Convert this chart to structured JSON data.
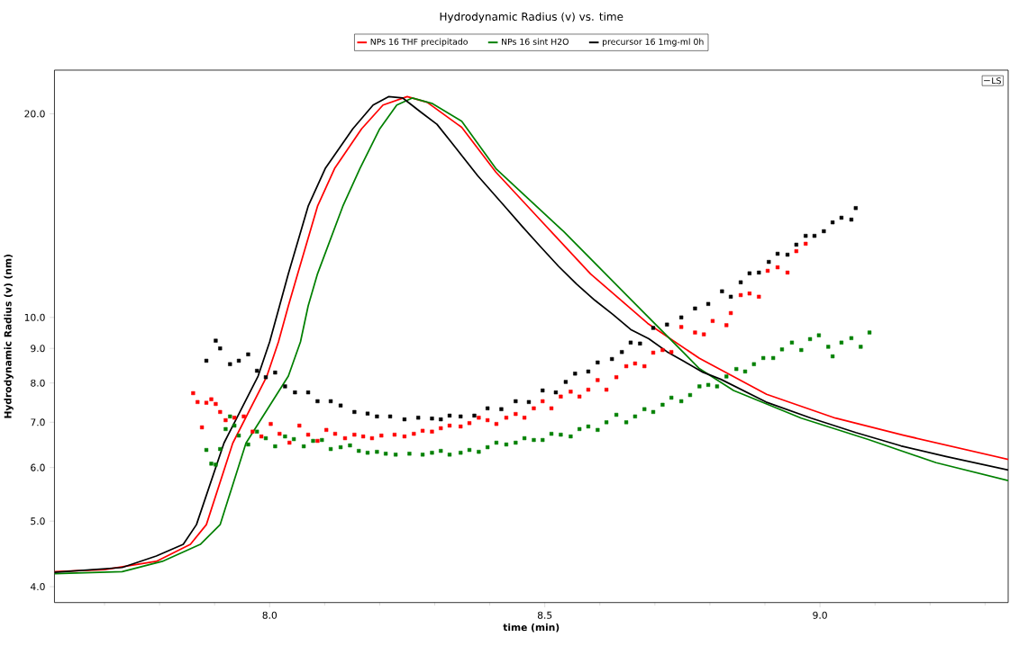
{
  "chart_data": {
    "type": "line",
    "title": "Hydrodynamic Radius (v) vs. time",
    "xlabel": "time (min)",
    "ylabel": "Hydrodynamic Radius (v) (nm)",
    "annotations": [
      "LS"
    ],
    "xlim": [
      7.609,
      9.342
    ],
    "ylim": [
      3.79,
      23.2
    ],
    "log": "y",
    "legend": "top",
    "xticks": [
      {
        "value": 7.7,
        "label": null
      },
      {
        "value": 7.8,
        "label": null
      },
      {
        "value": 7.9,
        "label": null
      },
      {
        "value": 8,
        "label": "8.0"
      },
      {
        "value": 8.1,
        "label": null
      },
      {
        "value": 8.2,
        "label": null
      },
      {
        "value": 8.3,
        "label": null
      },
      {
        "value": 8.4,
        "label": null
      },
      {
        "value": 8.5,
        "label": "8.5"
      },
      {
        "value": 8.6,
        "label": null
      },
      {
        "value": 8.7,
        "label": null
      },
      {
        "value": 8.8,
        "label": null
      },
      {
        "value": 8.9,
        "label": null
      },
      {
        "value": 9,
        "label": "9.0"
      },
      {
        "value": 9.1,
        "label": null
      },
      {
        "value": 9.2,
        "label": null
      },
      {
        "value": 9.3,
        "label": null
      }
    ],
    "yticks": [
      {
        "value": 4,
        "label": "4.0"
      },
      {
        "value": 5,
        "label": "5.0"
      },
      {
        "value": 6,
        "label": "6.0"
      },
      {
        "value": 7,
        "label": "7.0"
      },
      {
        "value": 8,
        "label": "8.0"
      },
      {
        "value": 9,
        "label": "9.0"
      },
      {
        "value": 10,
        "label": "10.0"
      },
      {
        "value": 20,
        "label": "20.0"
      }
    ],
    "series": [
      {
        "name": "NPs 16 THF precipitado",
        "color": "#ff0000",
        "x": [
          7.609,
          7.7,
          7.794,
          7.856,
          7.885,
          7.933,
          7.995,
          8.016,
          8.034,
          8.051,
          8.087,
          8.118,
          8.167,
          8.206,
          8.25,
          8.286,
          8.349,
          8.411,
          8.493,
          8.583,
          8.687,
          8.781,
          8.903,
          9.028,
          9.151,
          9.342
        ],
        "values": [
          4.21,
          4.24,
          4.36,
          4.62,
          4.94,
          6.52,
          8.19,
          9.2,
          10.4,
          11.6,
          14.6,
          16.6,
          19.0,
          20.6,
          21.2,
          20.8,
          19.1,
          16.4,
          13.9,
          11.6,
          9.8,
          8.7,
          7.7,
          7.1,
          6.7,
          6.17
        ]
      },
      {
        "name": "NPs 16 sint H2O",
        "color": "#008000",
        "x": [
          7.609,
          7.732,
          7.805,
          7.874,
          7.91,
          7.957,
          8.034,
          8.056,
          8.07,
          8.087,
          8.133,
          8.164,
          8.2,
          8.231,
          8.259,
          8.296,
          8.349,
          8.411,
          8.534,
          8.658,
          8.781,
          8.843,
          8.966,
          9.088,
          9.211,
          9.342
        ],
        "values": [
          4.18,
          4.21,
          4.36,
          4.62,
          4.94,
          6.52,
          8.19,
          9.2,
          10.4,
          11.6,
          14.6,
          16.6,
          19.0,
          20.6,
          21.1,
          20.7,
          19.5,
          16.6,
          13.4,
          10.6,
          8.4,
          7.8,
          7.1,
          6.6,
          6.1,
          5.74
        ]
      },
      {
        "name": "precursor 16 1mg-ml 0h",
        "color": "#000000",
        "x": [
          7.609,
          7.732,
          7.794,
          7.843,
          7.867,
          7.917,
          7.979,
          8.0,
          8.018,
          8.034,
          8.07,
          8.101,
          8.151,
          8.188,
          8.216,
          8.242,
          8.275,
          8.304,
          8.329,
          8.378,
          8.427,
          8.46,
          8.493,
          8.525,
          8.558,
          8.591,
          8.624,
          8.656,
          8.689,
          8.722,
          8.754,
          8.787,
          8.82,
          8.902,
          8.984,
          9.065,
          9.147,
          9.229,
          9.342
        ],
        "values": [
          4.2,
          4.27,
          4.44,
          4.62,
          4.94,
          6.52,
          8.19,
          9.2,
          10.4,
          11.6,
          14.6,
          16.6,
          19.0,
          20.6,
          21.2,
          21.1,
          20.1,
          19.3,
          18.2,
          16.2,
          14.6,
          13.6,
          12.7,
          11.9,
          11.2,
          10.6,
          10.1,
          9.6,
          9.3,
          8.9,
          8.6,
          8.3,
          8.1,
          7.5,
          7.1,
          6.76,
          6.46,
          6.23,
          5.95
        ]
      },
      {
        "type": "scatter",
        "marker": "square",
        "color": "#ff0000",
        "x": [
          7.861,
          7.869,
          7.877,
          7.885,
          7.894,
          7.902,
          7.91,
          7.92,
          7.936,
          7.953,
          7.969,
          7.985,
          8.002,
          8.018,
          8.036,
          8.054,
          8.07,
          8.087,
          8.103,
          8.119,
          8.137,
          8.154,
          8.17,
          8.186,
          8.203,
          8.227,
          8.245,
          8.262,
          8.278,
          8.295,
          8.311,
          8.327,
          8.347,
          8.363,
          8.38,
          8.396,
          8.412,
          8.43,
          8.447,
          8.463,
          8.48,
          8.496,
          8.512,
          8.529,
          8.547,
          8.563,
          8.579,
          8.596,
          8.612,
          8.63,
          8.648,
          8.664,
          8.681,
          8.697,
          8.714,
          8.73,
          8.748,
          8.773,
          8.789,
          8.805,
          8.83,
          8.838,
          8.856,
          8.872,
          8.889,
          8.905,
          8.923,
          8.941,
          8.957,
          8.974
        ],
        "values": [
          7.73,
          7.5,
          6.88,
          7.48,
          7.57,
          7.45,
          7.25,
          7.05,
          7.11,
          7.14,
          6.78,
          6.67,
          6.96,
          6.73,
          6.53,
          6.92,
          6.71,
          6.57,
          6.82,
          6.73,
          6.63,
          6.71,
          6.67,
          6.63,
          6.69,
          6.71,
          6.67,
          6.73,
          6.8,
          6.78,
          6.86,
          6.92,
          6.9,
          6.98,
          7.11,
          7.05,
          6.96,
          7.11,
          7.2,
          7.11,
          7.34,
          7.52,
          7.34,
          7.64,
          7.77,
          7.64,
          7.82,
          8.08,
          7.82,
          8.16,
          8.47,
          8.55,
          8.47,
          8.87,
          8.95,
          8.89,
          9.68,
          9.5,
          9.44,
          9.88,
          9.74,
          10.15,
          10.79,
          10.85,
          10.73,
          11.72,
          11.86,
          11.65,
          12.53,
          12.85
        ]
      },
      {
        "type": "scatter",
        "marker": "square",
        "color": "#008000",
        "x": [
          7.885,
          7.894,
          7.902,
          7.91,
          7.92,
          7.928,
          7.936,
          7.944,
          7.961,
          7.977,
          7.993,
          8.01,
          8.028,
          8.044,
          8.062,
          8.079,
          8.095,
          8.111,
          8.129,
          8.146,
          8.162,
          8.178,
          8.195,
          8.211,
          8.229,
          8.254,
          8.278,
          8.295,
          8.311,
          8.327,
          8.347,
          8.363,
          8.38,
          8.396,
          8.412,
          8.43,
          8.447,
          8.463,
          8.48,
          8.496,
          8.512,
          8.529,
          8.547,
          8.563,
          8.579,
          8.596,
          8.612,
          8.63,
          8.648,
          8.664,
          8.681,
          8.697,
          8.714,
          8.73,
          8.748,
          8.764,
          8.781,
          8.797,
          8.813,
          8.83,
          8.848,
          8.864,
          8.88,
          8.897,
          8.915,
          8.931,
          8.949,
          8.966,
          8.982,
          8.998,
          9.015,
          9.023,
          9.039,
          9.057,
          9.074,
          9.09
        ],
        "values": [
          6.37,
          6.08,
          6.06,
          6.39,
          6.84,
          7.14,
          6.92,
          6.69,
          6.49,
          6.78,
          6.63,
          6.45,
          6.67,
          6.61,
          6.45,
          6.57,
          6.59,
          6.39,
          6.43,
          6.47,
          6.35,
          6.31,
          6.33,
          6.29,
          6.27,
          6.29,
          6.27,
          6.31,
          6.35,
          6.27,
          6.31,
          6.37,
          6.33,
          6.43,
          6.53,
          6.49,
          6.53,
          6.63,
          6.59,
          6.59,
          6.73,
          6.71,
          6.67,
          6.84,
          6.9,
          6.82,
          7.0,
          7.18,
          7.0,
          7.14,
          7.32,
          7.25,
          7.43,
          7.61,
          7.52,
          7.68,
          7.91,
          7.95,
          7.91,
          8.18,
          8.39,
          8.32,
          8.53,
          8.71,
          8.71,
          8.97,
          9.18,
          8.95,
          9.29,
          9.41,
          9.05,
          8.76,
          9.18,
          9.32,
          9.05,
          9.5
        ]
      },
      {
        "type": "scatter",
        "marker": "square",
        "color": "#000000",
        "x": [
          7.885,
          7.902,
          7.91,
          7.928,
          7.944,
          7.961,
          7.977,
          7.993,
          8.01,
          8.028,
          8.046,
          8.07,
          8.087,
          8.111,
          8.129,
          8.154,
          8.178,
          8.195,
          8.219,
          8.245,
          8.27,
          8.295,
          8.311,
          8.327,
          8.347,
          8.372,
          8.396,
          8.421,
          8.447,
          8.471,
          8.496,
          8.52,
          8.538,
          8.555,
          8.579,
          8.596,
          8.622,
          8.64,
          8.656,
          8.673,
          8.697,
          8.722,
          8.748,
          8.773,
          8.797,
          8.822,
          8.838,
          8.856,
          8.872,
          8.889,
          8.907,
          8.923,
          8.941,
          8.957,
          8.974,
          8.99,
          9.007,
          9.023,
          9.039,
          9.057,
          9.065
        ],
        "values": [
          8.63,
          9.24,
          9.0,
          8.53,
          8.63,
          8.82,
          8.34,
          8.16,
          8.29,
          7.91,
          7.75,
          7.75,
          7.52,
          7.52,
          7.41,
          7.25,
          7.21,
          7.14,
          7.14,
          7.07,
          7.11,
          7.09,
          7.07,
          7.16,
          7.14,
          7.16,
          7.34,
          7.32,
          7.52,
          7.5,
          7.8,
          7.75,
          8.03,
          8.26,
          8.32,
          8.58,
          8.68,
          8.89,
          9.18,
          9.15,
          9.65,
          9.76,
          10.0,
          10.31,
          10.47,
          10.93,
          10.73,
          11.27,
          11.62,
          11.65,
          12.08,
          12.42,
          12.38,
          12.81,
          13.2,
          13.2,
          13.41,
          13.82,
          14.04,
          13.95,
          14.51
        ]
      }
    ]
  }
}
